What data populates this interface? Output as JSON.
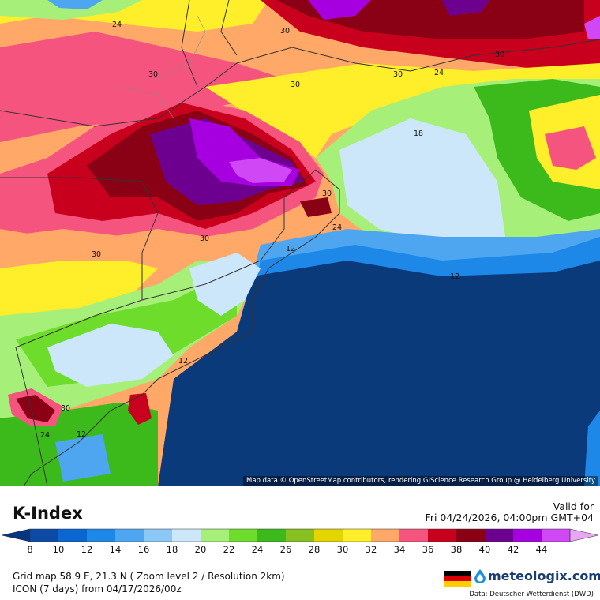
{
  "title": "K-Index",
  "valid": {
    "label": "Valid for",
    "time": "Fri 04/24/2026, 04:00pm GMT+04"
  },
  "legend": {
    "ticks": [
      "8",
      "10",
      "12",
      "14",
      "16",
      "18",
      "20",
      "22",
      "24",
      "26",
      "28",
      "30",
      "32",
      "34",
      "36",
      "38",
      "40",
      "42",
      "44"
    ],
    "colors": [
      "#0d4aa6",
      "#0a66d0",
      "#1e88e8",
      "#4ea6f0",
      "#8cc8f5",
      "#cde7fa",
      "#a6f07a",
      "#6ddc2a",
      "#3cba1c",
      "#88c020",
      "#e4d400",
      "#ffee2a",
      "#ffa868",
      "#f5547e",
      "#c8001e",
      "#8a0014",
      "#6e0090",
      "#a600e0",
      "#d048f5"
    ],
    "low_color": "#05357e",
    "high_color": "#e8a6f5"
  },
  "grid_info": "Grid map 58.9 E, 21.3 N ( Zoom level 2 / Resolution 2km)",
  "model_info": "ICON (7 days) from 04/17/2026/00z",
  "brand": "meteologix.com",
  "data_source": "Data: Deutscher Wetterdienst (DWD)",
  "attribution": "Map data © OpenStreetMap contributors, rendering GIScience Research Group @ Heidelberg University",
  "flag_colors": [
    "#000000",
    "#dd0000",
    "#ffce00"
  ],
  "map": {
    "contour_labels": [
      "24",
      "30",
      "30",
      "30",
      "30",
      "30",
      "24",
      "18",
      "30",
      "30",
      "24",
      "12",
      "12",
      "30",
      "12",
      "30",
      "24",
      "12"
    ]
  }
}
